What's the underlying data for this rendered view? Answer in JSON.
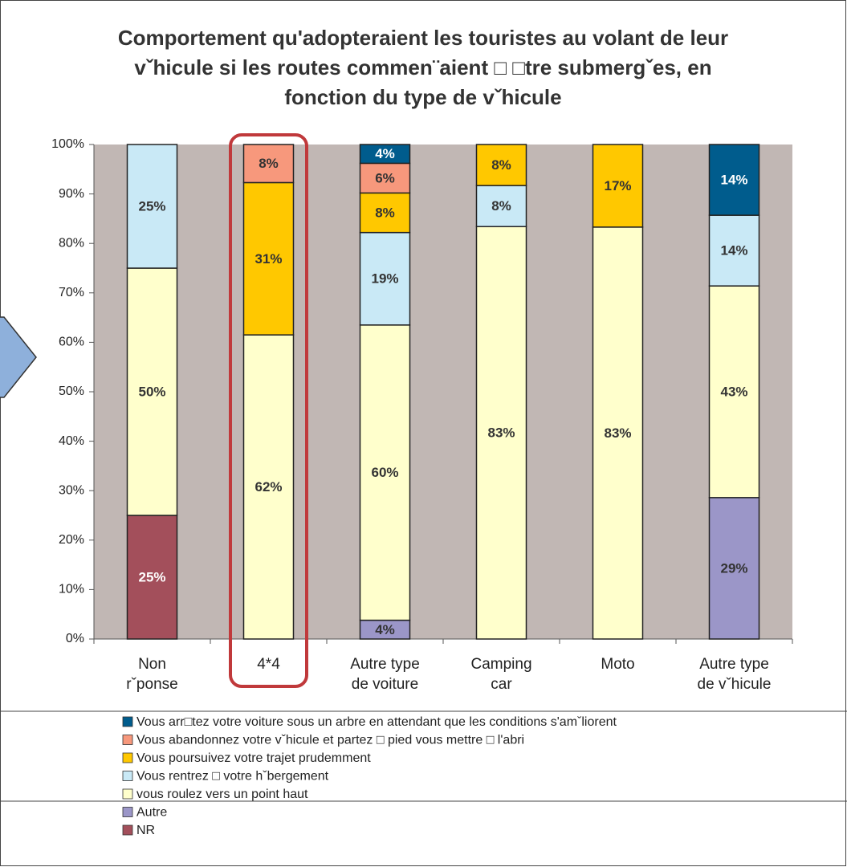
{
  "chart_data": {
    "type": "stacked_bar",
    "title": "Comportement qu'adopteraient les touristes au volant de leur vˇhicule si les routes commen¨aient □ □tre submergˇes, en fonction du type de vˇhicule",
    "categories": [
      "Non rˇponse",
      "4*4",
      "Autre type de voiture",
      "Camping car",
      "Moto",
      "Autre type de vˇhicule"
    ],
    "series": [
      {
        "name": "NR",
        "color": "#a34f5b",
        "label_color": "#ffffff",
        "values": [
          25,
          0,
          0,
          0,
          0,
          0
        ],
        "value_labels": [
          "25%",
          null,
          null,
          null,
          null,
          null
        ]
      },
      {
        "name": "Autre",
        "color": "#9b96c8",
        "label_color": "#333333",
        "values": [
          0,
          0,
          3.8,
          0,
          0,
          28.6
        ],
        "value_labels": [
          null,
          null,
          "4%",
          null,
          null,
          "29%"
        ]
      },
      {
        "name": "vous roulez vers un point haut",
        "color": "#ffffcc",
        "label_color": "#333333",
        "values": [
          50,
          61.5,
          59.7,
          83.4,
          83.3,
          42.8
        ],
        "value_labels": [
          "50%",
          "62%",
          "60%",
          "83%",
          "83%",
          "43%"
        ]
      },
      {
        "name": "Vous rentrez □ votre hˇbergement",
        "color": "#c9e9f6",
        "label_color": "#333333",
        "values": [
          25,
          0,
          18.7,
          8.3,
          0,
          14.3
        ],
        "value_labels": [
          "25%",
          null,
          "19%",
          "8%",
          null,
          "14%"
        ]
      },
      {
        "name": "Vous poursuivez votre trajet prudemment",
        "color": "#ffc800",
        "label_color": "#333333",
        "values": [
          0,
          30.8,
          8.0,
          8.3,
          16.7,
          0
        ],
        "value_labels": [
          null,
          "31%",
          "8%",
          "8%",
          "17%",
          null
        ]
      },
      {
        "name": "Vous abandonnez votre vˇhicule et partez □ pied vous mettre □ l'abri",
        "color": "#f7987c",
        "label_color": "#333333",
        "values": [
          0,
          7.7,
          6.0,
          0,
          0,
          0
        ],
        "value_labels": [
          null,
          "8%",
          "6%",
          null,
          null,
          null
        ]
      },
      {
        "name": "Vous arr□tez votre voiture sous un arbre en attendant que les conditions s'amˇliorent",
        "color": "#005c8d",
        "label_color": "#ffffff",
        "values": [
          0,
          0,
          3.8,
          0,
          0,
          14.3
        ],
        "value_labels": [
          null,
          null,
          "4%",
          null,
          null,
          "14%"
        ]
      }
    ],
    "ylim": [
      0,
      100
    ],
    "yticks": [
      {
        "value": 0,
        "label": "0%"
      },
      {
        "value": 10,
        "label": "10%"
      },
      {
        "value": 20,
        "label": "20%"
      },
      {
        "value": 30,
        "label": "30%"
      },
      {
        "value": 40,
        "label": "40%"
      },
      {
        "value": 50,
        "label": "50%"
      },
      {
        "value": 60,
        "label": "60%"
      },
      {
        "value": 70,
        "label": "70%"
      },
      {
        "value": 80,
        "label": "80%"
      },
      {
        "value": 90,
        "label": "90%"
      },
      {
        "value": 100,
        "label": "100%"
      }
    ],
    "plot_background": "#c1b7b4",
    "legend": "bottom"
  }
}
